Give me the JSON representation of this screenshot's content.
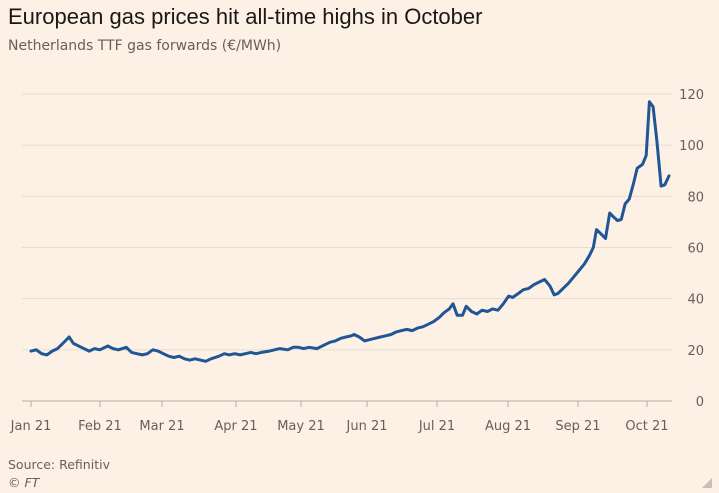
{
  "header": {
    "title": "European gas prices hit all-time highs in October",
    "subtitle": "Netherlands TTF gas forwards (€/MWh)"
  },
  "footer": {
    "source": "Source: Refinitiv",
    "credit": "© FT"
  },
  "colors": {
    "background": "#fdf1e5",
    "line": "#1f5693",
    "grid": "#e6dccf",
    "text": "#66605c"
  },
  "chart_data": {
    "type": "line",
    "title": "European gas prices hit all-time highs in October",
    "subtitle": "Netherlands TTF gas forwards (€/MWh)",
    "ylim": [
      0,
      120
    ],
    "yticks": [
      0,
      20,
      40,
      60,
      80,
      100,
      120
    ],
    "y_axis_side": "right",
    "grid": "horizontal",
    "x_tick_labels": [
      "Jan 21",
      "Feb 21",
      "Mar 21",
      "Apr 21",
      "May 21",
      "Jun 21",
      "Jul 21",
      "Aug 21",
      "Sep 21",
      "Oct 21"
    ],
    "series": [
      {
        "points": [
          [
            0.0,
            19.5
          ],
          [
            0.1,
            20.0
          ],
          [
            0.2,
            18.5
          ],
          [
            0.3,
            18.0
          ],
          [
            0.4,
            19.5
          ],
          [
            0.5,
            20.5
          ],
          [
            0.6,
            22.5
          ],
          [
            0.72,
            25.0
          ],
          [
            0.8,
            22.5
          ],
          [
            0.95,
            21.0
          ],
          [
            1.1,
            19.5
          ],
          [
            1.2,
            20.5
          ],
          [
            1.3,
            20.0
          ],
          [
            1.45,
            21.5
          ],
          [
            1.55,
            20.5
          ],
          [
            1.65,
            20.0
          ],
          [
            1.8,
            21.0
          ],
          [
            1.9,
            19.0
          ],
          [
            2.0,
            18.5
          ],
          [
            2.1,
            18.0
          ],
          [
            2.2,
            18.5
          ],
          [
            2.3,
            20.0
          ],
          [
            2.4,
            19.5
          ],
          [
            2.5,
            18.5
          ],
          [
            2.6,
            17.5
          ],
          [
            2.7,
            17.0
          ],
          [
            2.8,
            17.5
          ],
          [
            2.9,
            16.5
          ],
          [
            3.0,
            16.0
          ],
          [
            3.1,
            16.5
          ],
          [
            3.2,
            16.0
          ],
          [
            3.3,
            15.5
          ],
          [
            3.4,
            16.5
          ],
          [
            3.55,
            17.5
          ],
          [
            3.65,
            18.5
          ],
          [
            3.75,
            18.0
          ],
          [
            3.85,
            18.5
          ],
          [
            3.95,
            18.0
          ],
          [
            4.05,
            18.5
          ],
          [
            4.15,
            19.0
          ],
          [
            4.25,
            18.5
          ],
          [
            4.35,
            19.0
          ],
          [
            4.5,
            19.5
          ],
          [
            4.6,
            20.0
          ],
          [
            4.7,
            20.5
          ],
          [
            4.85,
            20.0
          ],
          [
            4.95,
            21.0
          ],
          [
            5.05,
            21.0
          ],
          [
            5.15,
            20.5
          ],
          [
            5.25,
            21.0
          ],
          [
            5.4,
            20.5
          ],
          [
            5.55,
            22.0
          ],
          [
            5.65,
            23.0
          ],
          [
            5.75,
            23.5
          ],
          [
            5.85,
            24.5
          ],
          [
            5.95,
            25.0
          ],
          [
            6.05,
            25.5
          ],
          [
            6.1,
            26.0
          ],
          [
            6.2,
            25.0
          ],
          [
            6.3,
            23.5
          ],
          [
            6.4,
            24.0
          ],
          [
            6.5,
            24.5
          ],
          [
            6.6,
            25.0
          ],
          [
            6.7,
            25.5
          ],
          [
            6.8,
            26.0
          ],
          [
            6.9,
            27.0
          ],
          [
            7.0,
            27.5
          ],
          [
            7.1,
            28.0
          ],
          [
            7.2,
            27.5
          ],
          [
            7.3,
            28.5
          ],
          [
            7.4,
            29.0
          ],
          [
            7.5,
            30.0
          ],
          [
            7.6,
            31.0
          ],
          [
            7.7,
            32.5
          ],
          [
            7.8,
            34.5
          ],
          [
            7.9,
            36.0
          ],
          [
            7.97,
            38.0
          ],
          [
            8.05,
            33.5
          ],
          [
            8.15,
            33.5
          ],
          [
            8.22,
            37.0
          ],
          [
            8.32,
            35.0
          ],
          [
            8.42,
            34.0
          ],
          [
            8.52,
            35.5
          ],
          [
            8.62,
            35.0
          ],
          [
            8.72,
            36.0
          ],
          [
            8.82,
            35.5
          ],
          [
            8.92,
            38.0
          ],
          [
            9.02,
            41.0
          ],
          [
            9.1,
            40.5
          ],
          [
            9.2,
            42.0
          ],
          [
            9.3,
            43.5
          ],
          [
            9.4,
            44.0
          ],
          [
            9.5,
            45.5
          ],
          [
            9.6,
            46.5
          ],
          [
            9.7,
            47.5
          ],
          [
            9.8,
            45.0
          ],
          [
            9.88,
            41.5
          ],
          [
            9.95,
            42.0
          ],
          [
            10.05,
            44.0
          ],
          [
            10.15,
            46.0
          ],
          [
            10.25,
            48.5
          ],
          [
            10.35,
            51.0
          ],
          [
            10.45,
            53.5
          ],
          [
            10.55,
            57.0
          ],
          [
            10.62,
            60.0
          ],
          [
            10.68,
            67.0
          ],
          [
            10.78,
            65.0
          ],
          [
            10.85,
            63.5
          ],
          [
            10.93,
            73.5
          ],
          [
            11.0,
            72.0
          ],
          [
            11.08,
            70.5
          ],
          [
            11.15,
            71.0
          ],
          [
            11.22,
            77.0
          ],
          [
            11.3,
            79.0
          ],
          [
            11.38,
            85.0
          ],
          [
            11.45,
            91.0
          ],
          [
            11.55,
            92.5
          ],
          [
            11.62,
            96.0
          ],
          [
            11.68,
            117.0
          ],
          [
            11.75,
            115.0
          ],
          [
            11.82,
            102.0
          ],
          [
            11.9,
            84.0
          ],
          [
            11.97,
            84.5
          ],
          [
            12.05,
            88.0
          ]
        ]
      }
    ]
  }
}
